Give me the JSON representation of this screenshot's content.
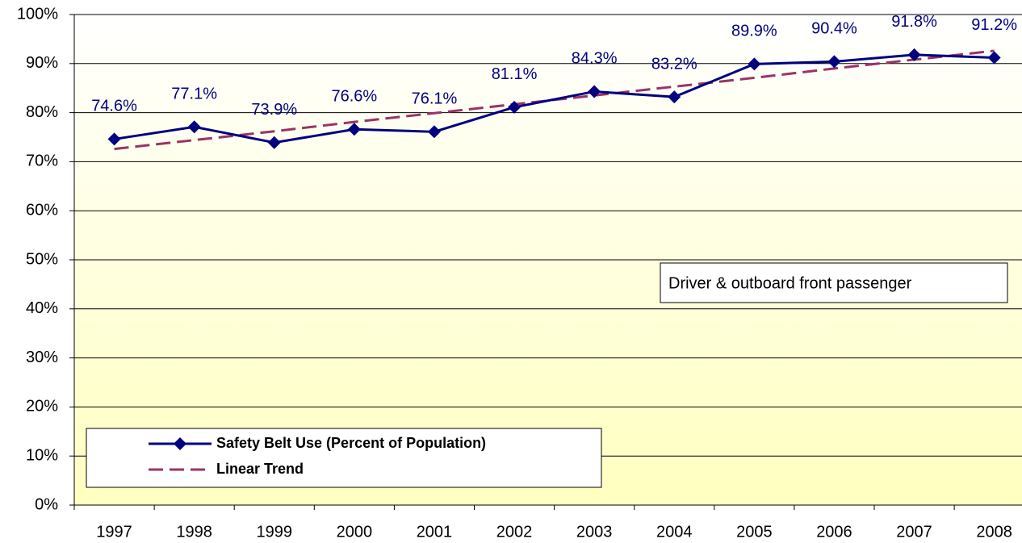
{
  "chart_data": {
    "type": "line",
    "categories": [
      "1997",
      "1998",
      "1999",
      "2000",
      "2001",
      "2002",
      "2003",
      "2004",
      "2005",
      "2006",
      "2007",
      "2008"
    ],
    "series": [
      {
        "name": "Safety Belt Use (Percent of Population)",
        "color": "#000080",
        "values": [
          74.6,
          77.1,
          73.9,
          76.6,
          76.1,
          81.1,
          84.3,
          83.2,
          89.9,
          90.4,
          91.8,
          91.2
        ],
        "value_labels": [
          "74.6%",
          "77.1%",
          "73.9%",
          "76.6%",
          "76.1%",
          "81.1%",
          "84.3%",
          "83.2%",
          "89.9%",
          "90.4%",
          "91.8%",
          "91.2%"
        ]
      },
      {
        "name": "Linear Trend",
        "color": "#993366",
        "dashed": true,
        "values": [
          72.6,
          74.4,
          76.2,
          78.1,
          79.9,
          81.7,
          83.5,
          85.3,
          87.1,
          89.0,
          90.8,
          92.6
        ]
      }
    ],
    "ylim": [
      0,
      100
    ],
    "yticks": [
      {
        "value": 0,
        "label": "0%"
      },
      {
        "value": 10,
        "label": "10%"
      },
      {
        "value": 20,
        "label": "20%"
      },
      {
        "value": 30,
        "label": "30%"
      },
      {
        "value": 40,
        "label": "40%"
      },
      {
        "value": 50,
        "label": "50%"
      },
      {
        "value": 60,
        "label": "60%"
      },
      {
        "value": 70,
        "label": "70%"
      },
      {
        "value": 80,
        "label": "80%"
      },
      {
        "value": 90,
        "label": "90%"
      },
      {
        "value": 100,
        "label": "100%"
      }
    ],
    "grid": true,
    "annotation": "Driver & outboard front passenger",
    "legend": "lower left"
  }
}
